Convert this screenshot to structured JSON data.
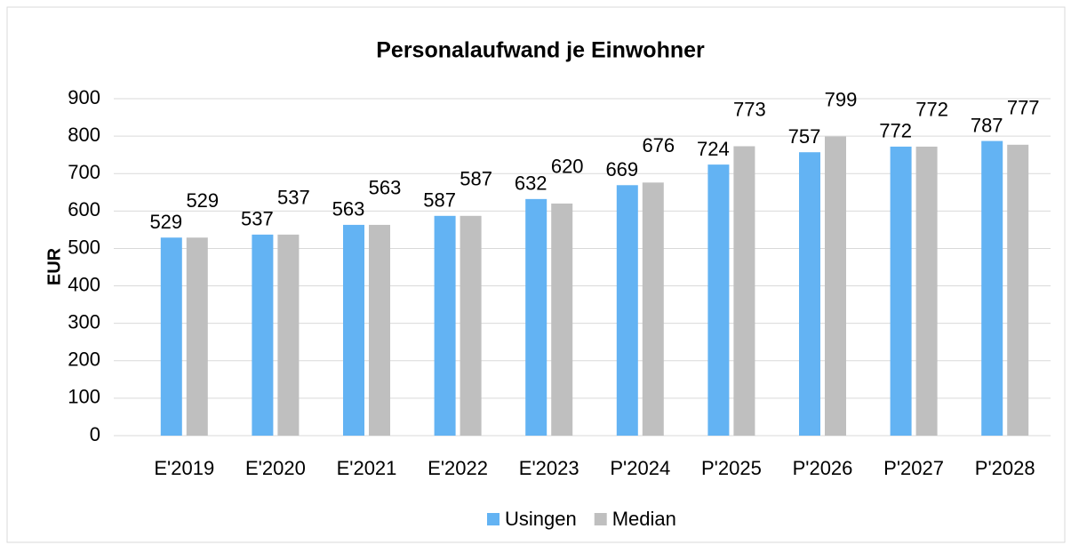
{
  "chart_data": {
    "type": "bar",
    "title": "Personalaufwand je Einwohner",
    "y_label": "EUR",
    "categories": [
      "E'2019",
      "E'2020",
      "E'2021",
      "E'2022",
      "E'2023",
      "P'2024",
      "P'2025",
      "P'2026",
      "P'2027",
      "P'2028"
    ],
    "series": [
      {
        "name": "Usingen",
        "color": "#63b3f3",
        "values": [
          529,
          537,
          563,
          587,
          632,
          669,
          724,
          757,
          772,
          787
        ]
      },
      {
        "name": "Median",
        "color": "#bfbfbf",
        "values": [
          529,
          537,
          563,
          587,
          620,
          676,
          773,
          799,
          772,
          777
        ]
      }
    ],
    "ylim": [
      0,
      900
    ],
    "yticks": [
      0,
      100,
      200,
      300,
      400,
      500,
      600,
      700,
      800,
      900
    ],
    "grid": true,
    "legend": "bottom"
  }
}
